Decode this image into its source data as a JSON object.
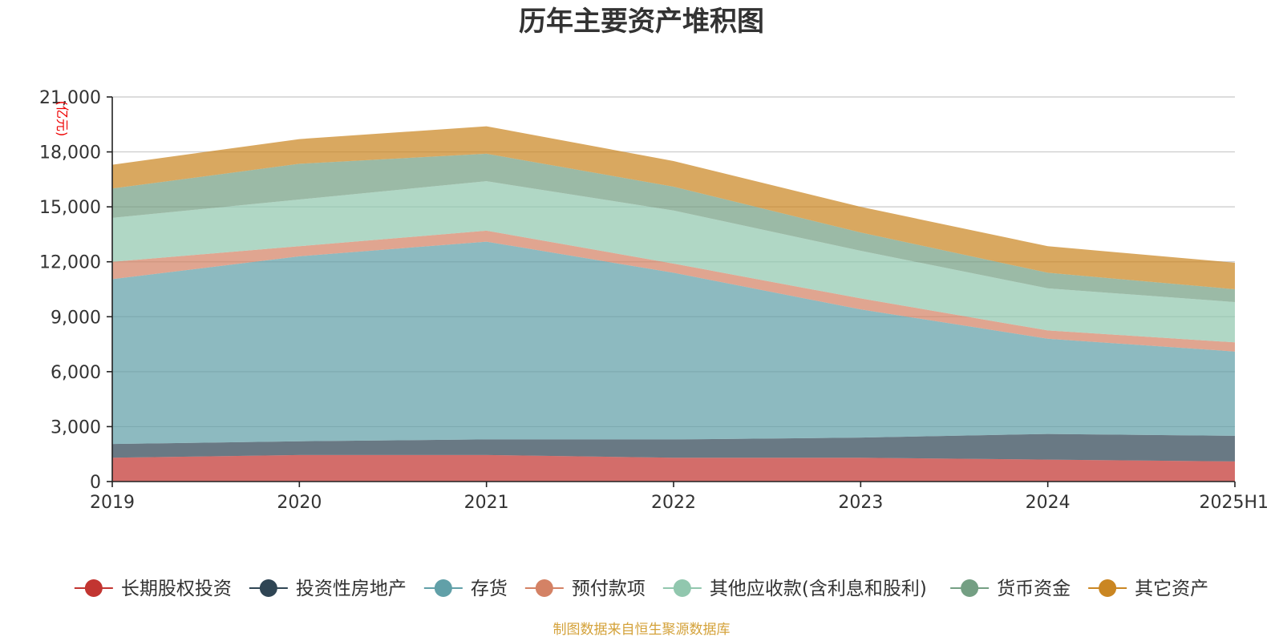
{
  "chart_data": {
    "type": "area",
    "stacked": true,
    "title": "历年主要资产堆积图",
    "y_unit": "(亿元)",
    "categories": [
      "2019",
      "2020",
      "2021",
      "2022",
      "2023",
      "2024",
      "2025H1"
    ],
    "ylim": [
      0,
      21000
    ],
    "yticks": [
      0,
      3000,
      6000,
      9000,
      12000,
      15000,
      18000,
      21000
    ],
    "ytick_labels": [
      "0",
      "3,000",
      "6,000",
      "9,000",
      "12,000",
      "15,000",
      "18,000",
      "21,000"
    ],
    "grid": true,
    "legend_position": "bottom",
    "series": [
      {
        "name": "长期股权投资",
        "color": "#c23531",
        "values": [
          1300,
          1450,
          1450,
          1300,
          1300,
          1200,
          1100
        ]
      },
      {
        "name": "投资性房地产",
        "color": "#2f4554",
        "values": [
          750,
          750,
          850,
          1000,
          1100,
          1400,
          1400
        ]
      },
      {
        "name": "存货",
        "color": "#61a0a8",
        "values": [
          9000,
          10100,
          10800,
          9100,
          7000,
          5200,
          4600
        ]
      },
      {
        "name": "预付款项",
        "color": "#d48265",
        "values": [
          950,
          550,
          600,
          500,
          600,
          450,
          500
        ]
      },
      {
        "name": "其他应收款(含利息和股利)",
        "color": "#91c7ae",
        "values": [
          2400,
          2550,
          2700,
          2900,
          2600,
          2300,
          2200
        ]
      },
      {
        "name": "货币资金",
        "color": "#749f83",
        "values": [
          1600,
          1950,
          1500,
          1300,
          1000,
          850,
          700
        ]
      },
      {
        "name": "其它资产",
        "color": "#ca8622",
        "values": [
          1300,
          1350,
          1500,
          1400,
          1400,
          1450,
          1450
        ]
      }
    ]
  },
  "source_note": "制图数据来自恒生聚源数据库"
}
